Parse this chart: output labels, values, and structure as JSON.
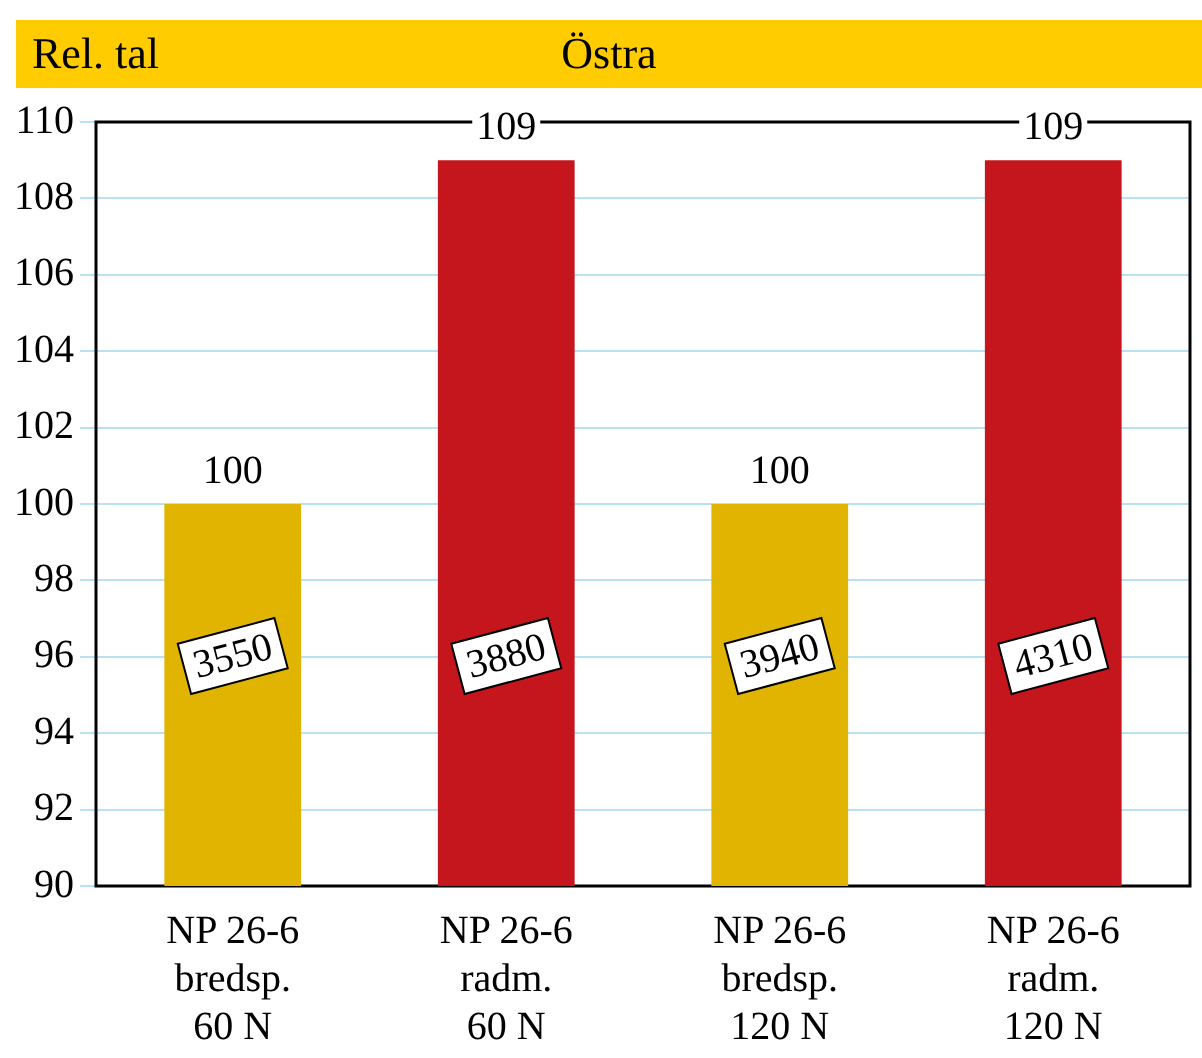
{
  "chart_data": {
    "type": "bar",
    "title": "Östra",
    "ylabel": "Rel. tal",
    "categories": [
      "NP 26-6\nbredsp.\n60 N",
      "NP 26-6\nradm.\n60 N",
      "NP 26-6\nbredsp.\n120 N",
      "NP 26-6\nradm.\n120 N"
    ],
    "values": [
      100,
      109,
      100,
      109
    ],
    "colors": [
      "#e0b400",
      "#c4161c",
      "#e0b400",
      "#c4161c"
    ],
    "ylim": [
      90,
      110
    ],
    "yticks": [
      90,
      92,
      94,
      96,
      98,
      100,
      102,
      104,
      106,
      108,
      110
    ],
    "grid": "y",
    "data_labels": true,
    "annotations": [
      "3550",
      "3880",
      "3940",
      "4310"
    ]
  }
}
